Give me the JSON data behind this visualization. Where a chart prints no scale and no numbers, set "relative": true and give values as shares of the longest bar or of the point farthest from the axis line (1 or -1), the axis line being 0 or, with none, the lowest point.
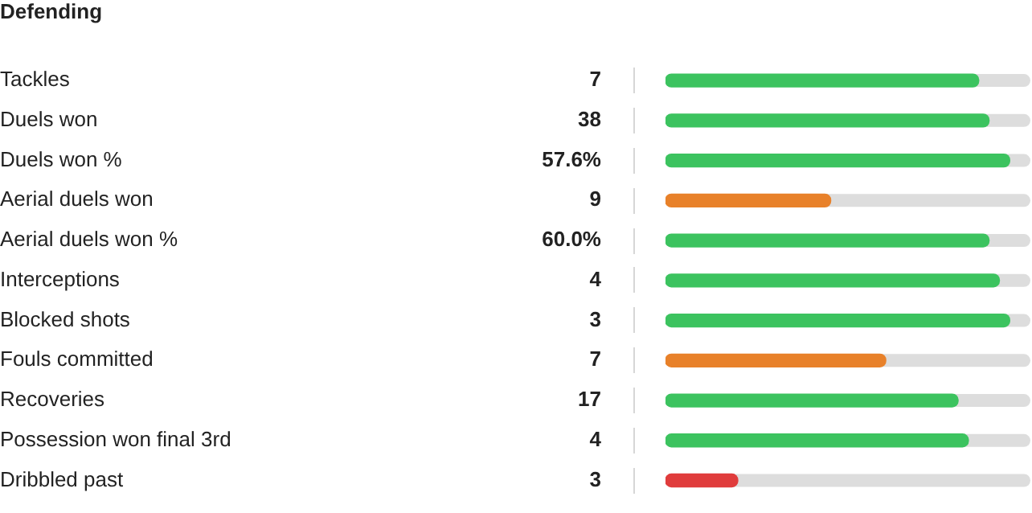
{
  "chart_data": {
    "type": "bar",
    "orientation": "horizontal",
    "relative": true,
    "title": "Defending",
    "categories": [
      "Tackles",
      "Duels won",
      "Duels won %",
      "Aerial duels won",
      "Aerial duels won %",
      "Interceptions",
      "Blocked shots",
      "Fouls committed",
      "Recoveries",
      "Possession won final 3rd",
      "Dribbled past"
    ],
    "values": [
      0.91,
      0.94,
      1,
      0.48,
      0.94,
      0.97,
      1,
      0.64,
      0.85,
      0.88,
      0.21
    ],
    "colors": [
      "#3cc35f",
      "#3cc35f",
      "#3cc35f",
      "#e8812a",
      "#3cc35f",
      "#3cc35f",
      "#3cc35f",
      "#e8812a",
      "#3cc35f",
      "#3cc35f",
      "#e03c3c"
    ],
    "annotations": [
      "7",
      "38",
      "57.6%",
      "9",
      "60.0%",
      "4",
      "3",
      "7",
      "17",
      "4",
      "3"
    ],
    "grid": false,
    "legend": false
  }
}
